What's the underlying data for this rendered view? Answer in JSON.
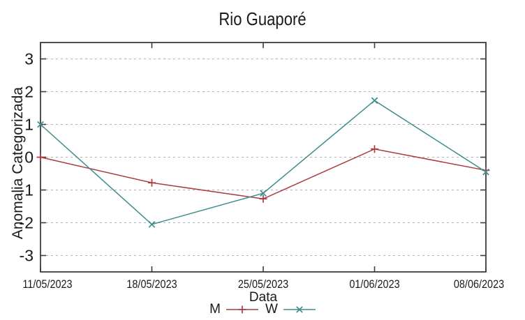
{
  "page": {
    "background": "#ffffff"
  },
  "chart_data": {
    "type": "line",
    "title": "Rio Guaporé",
    "xlabel": "Data",
    "ylabel": "Anomalia Categorizada",
    "categories": [
      "11/05/2023",
      "18/05/2023",
      "25/05/2023",
      "01/06/2023",
      "08/06/2023"
    ],
    "y_ticks": [
      -3,
      -2,
      -1,
      0,
      1,
      2,
      3
    ],
    "ylim": [
      -3.5,
      3.5
    ],
    "grid": "horizontal dashed gray lines at integer y values",
    "legend_position": "bottom-center below x-axis label",
    "series": [
      {
        "name": "M",
        "color": "#ac3a3e",
        "marker": "plus",
        "values": [
          0.0,
          -0.78,
          -1.27,
          0.25,
          -0.4
        ]
      },
      {
        "name": "W",
        "color": "#3d8d8d",
        "marker": "cross",
        "values": [
          1.0,
          -2.05,
          -1.1,
          1.73,
          -0.45
        ]
      }
    ],
    "axis_color": "#3d3d3d",
    "grid_color": "#b0b0b0",
    "text_color": "#1a1a1a"
  }
}
